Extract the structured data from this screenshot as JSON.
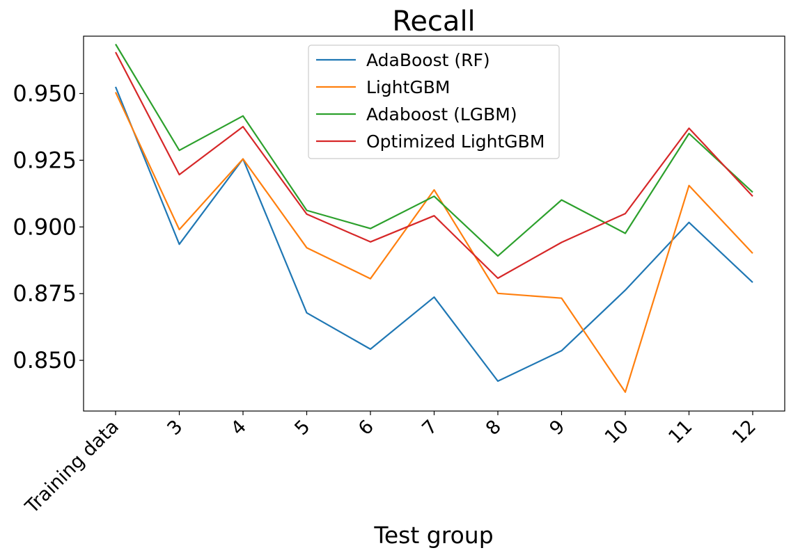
{
  "chart_data": {
    "type": "line",
    "title": "Recall",
    "xlabel": "Test group",
    "ylabel": "",
    "categories": [
      "Training data",
      "3",
      "4",
      "5",
      "6",
      "7",
      "8",
      "9",
      "10",
      "11",
      "12"
    ],
    "ylim": [
      0.831,
      0.9715
    ],
    "yticks": [
      0.85,
      0.875,
      0.9,
      0.925,
      0.95
    ],
    "ytick_labels": [
      "0.850",
      "0.875",
      "0.900",
      "0.925",
      "0.950"
    ],
    "grid": false,
    "legend_position": "top-center",
    "series": [
      {
        "name": "AdaBoost (RF)",
        "color": "#1f77b4",
        "values": [
          0.9525,
          0.8935,
          0.9255,
          0.8678,
          0.8542,
          0.8737,
          0.8422,
          0.8536,
          0.8763,
          0.9017,
          0.8792
        ]
      },
      {
        "name": "LightGBM",
        "color": "#ff7f0e",
        "values": [
          0.9505,
          0.899,
          0.9255,
          0.8922,
          0.8806,
          0.9139,
          0.8751,
          0.8733,
          0.8381,
          0.9155,
          0.8901
        ]
      },
      {
        "name": "Adaboost (LGBM)",
        "color": "#2ca02c",
        "values": [
          0.9685,
          0.9287,
          0.9416,
          0.9062,
          0.8994,
          0.9115,
          0.8891,
          0.9101,
          0.8976,
          0.935,
          0.913
        ]
      },
      {
        "name": "Optimized LightGBM",
        "color": "#d62728",
        "values": [
          0.9655,
          0.9196,
          0.9376,
          0.9048,
          0.8944,
          0.9042,
          0.8808,
          0.8942,
          0.905,
          0.937,
          0.9115
        ]
      }
    ]
  }
}
